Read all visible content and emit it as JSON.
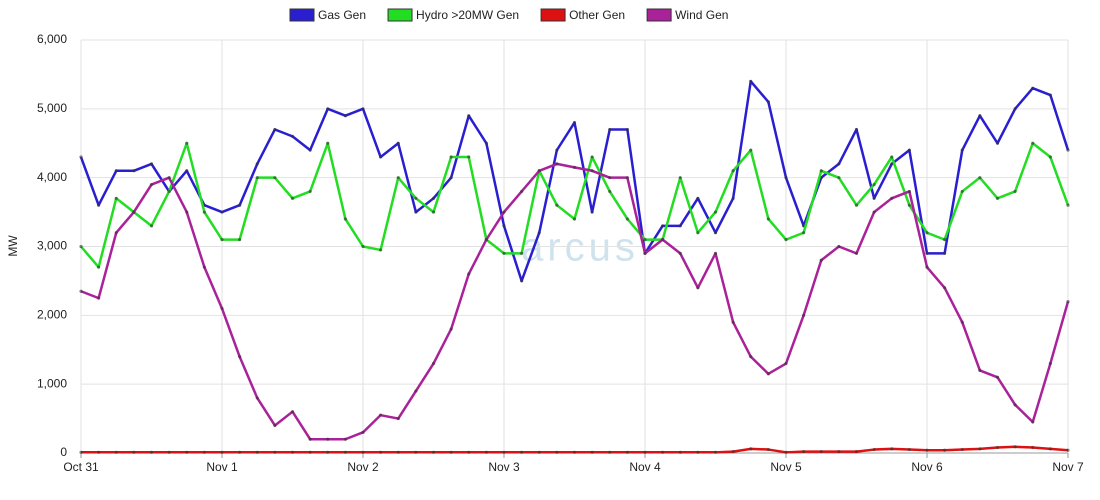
{
  "chart_data": {
    "type": "line",
    "watermark": "arcus",
    "ylabel": "MW",
    "categories": [
      "Oct 31",
      null,
      null,
      null,
      null,
      null,
      null,
      null,
      "Nov 1",
      null,
      null,
      null,
      null,
      null,
      null,
      null,
      "Nov 2",
      null,
      null,
      null,
      null,
      null,
      null,
      null,
      "Nov 3",
      null,
      null,
      null,
      null,
      null,
      null,
      null,
      "Nov 4",
      null,
      null,
      null,
      null,
      null,
      null,
      null,
      "Nov 5",
      null,
      null,
      null,
      null,
      null,
      null,
      null,
      "Nov 6",
      null,
      null,
      null,
      null,
      null,
      null,
      null,
      "Nov 7"
    ],
    "ylim": [
      0,
      6000
    ],
    "yticks": [
      0,
      {
        "value": 1000,
        "label": "1,000"
      },
      {
        "value": 2000,
        "label": "2,000"
      },
      {
        "value": 3000,
        "label": "3,000"
      },
      {
        "value": 4000,
        "label": "4,000"
      },
      {
        "value": 5000,
        "label": "5,000"
      },
      {
        "value": 6000,
        "label": "6,000"
      }
    ],
    "grid": true,
    "legend": "top",
    "series": [
      {
        "name": "Gas Gen",
        "color": "#2a1fd0",
        "values": [
          4300,
          3600,
          4100,
          4100,
          4200,
          3800,
          4100,
          3600,
          3500,
          3600,
          4200,
          4700,
          4600,
          4400,
          5000,
          4900,
          5000,
          4300,
          4500,
          3500,
          3700,
          4000,
          4900,
          4500,
          3300,
          2500,
          3200,
          4400,
          4800,
          3500,
          4700,
          4700,
          2900,
          3300,
          3300,
          3700,
          3200,
          3700,
          5400,
          5100,
          4000,
          3300,
          4000,
          4200,
          4700,
          3700,
          4200,
          4400,
          2900,
          2900,
          4400,
          4900,
          4500,
          5000,
          5300,
          5200,
          4400
        ]
      },
      {
        "name": "Hydro >20MW Gen",
        "color": "#22dd22",
        "values": [
          3000,
          2700,
          3700,
          3500,
          3300,
          3800,
          4500,
          3500,
          3100,
          3100,
          4000,
          4000,
          3700,
          3800,
          4500,
          3400,
          3000,
          2950,
          4000,
          3700,
          3500,
          4300,
          4300,
          3100,
          2900,
          2900,
          4100,
          3600,
          3400,
          4300,
          3800,
          3400,
          3100,
          3100,
          4000,
          3200,
          3500,
          4100,
          4400,
          3400,
          3100,
          3200,
          4100,
          4000,
          3600,
          3900,
          4300,
          3600,
          3200,
          3100,
          3800,
          4000,
          3700,
          3800,
          4500,
          4300,
          3600
        ]
      },
      {
        "name": "Other Gen",
        "color": "#dd1111",
        "values": [
          10,
          10,
          10,
          10,
          10,
          10,
          10,
          10,
          10,
          10,
          10,
          10,
          10,
          10,
          10,
          10,
          10,
          10,
          10,
          10,
          10,
          10,
          10,
          10,
          10,
          10,
          10,
          10,
          10,
          10,
          10,
          10,
          10,
          10,
          10,
          10,
          10,
          20,
          60,
          50,
          10,
          20,
          20,
          20,
          20,
          50,
          60,
          50,
          40,
          40,
          50,
          60,
          80,
          90,
          80,
          60,
          40
        ]
      },
      {
        "name": "Wind Gen",
        "color": "#aa2299",
        "values": [
          2350,
          2250,
          3200,
          3500,
          3900,
          4000,
          3500,
          2700,
          2100,
          1400,
          800,
          400,
          600,
          200,
          200,
          200,
          300,
          550,
          500,
          900,
          1300,
          1800,
          2600,
          3100,
          3500,
          3800,
          4100,
          4200,
          4150,
          4100,
          4000,
          4000,
          2900,
          3100,
          2900,
          2400,
          2900,
          1900,
          1400,
          1150,
          1300,
          2000,
          2800,
          3000,
          2900,
          3500,
          3700,
          3800,
          2700,
          2400,
          1900,
          1200,
          1100,
          700,
          450,
          1300,
          2200
        ]
      }
    ]
  }
}
